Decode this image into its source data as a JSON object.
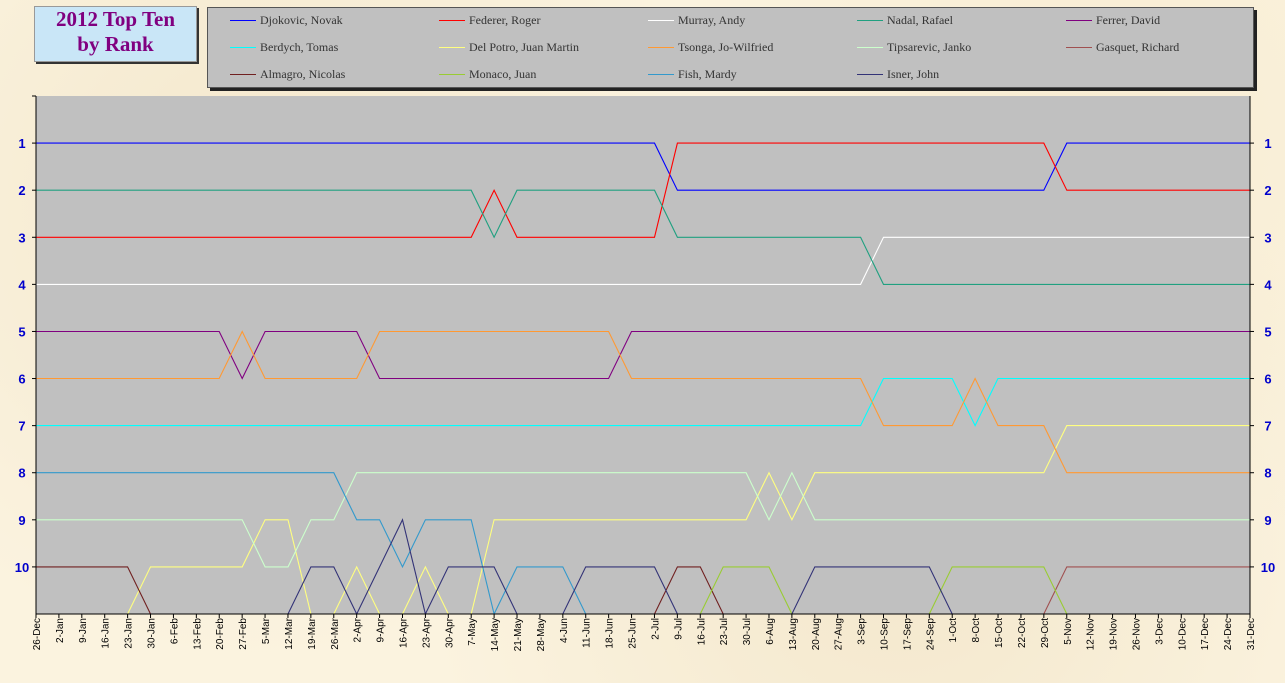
{
  "title": {
    "line1": "2012 Top Ten",
    "line2": "by Rank"
  },
  "chart_data": {
    "type": "line",
    "title": "2012 Top Ten by Rank",
    "xlabel": "",
    "ylabel": "",
    "ylim": [
      11,
      0
    ],
    "y_ticks": [
      1,
      2,
      3,
      4,
      5,
      6,
      7,
      8,
      9,
      10
    ],
    "grid": false,
    "legend_position": "top",
    "categories": [
      "26-Dec",
      "2-Jan",
      "9-Jan",
      "16-Jan",
      "23-Jan",
      "30-Jan",
      "6-Feb",
      "13-Feb",
      "20-Feb",
      "27-Feb",
      "5-Mar",
      "12-Mar",
      "19-Mar",
      "26-Mar",
      "2-Apr",
      "9-Apr",
      "16-Apr",
      "23-Apr",
      "30-Apr",
      "7-May",
      "14-May",
      "21-May",
      "28-May",
      "4-Jun",
      "11-Jun",
      "18-Jun",
      "25-Jun",
      "2-Jul",
      "9-Jul",
      "16-Jul",
      "23-Jul",
      "30-Jul",
      "6-Aug",
      "13-Aug",
      "20-Aug",
      "27-Aug",
      "3-Sep",
      "10-Sep",
      "17-Sep",
      "24-Sep",
      "1-Oct",
      "8-Oct",
      "15-Oct",
      "22-Oct",
      "29-Oct",
      "5-Nov",
      "12-Nov",
      "19-Nov",
      "26-Nov",
      "3-Dec",
      "10-Dec",
      "17-Dec",
      "24-Dec",
      "31-Dec"
    ],
    "series": [
      {
        "name": "Djokovic, Novak",
        "color": "#0000ff",
        "values": [
          1,
          1,
          1,
          1,
          1,
          1,
          1,
          1,
          1,
          1,
          1,
          1,
          1,
          1,
          1,
          1,
          1,
          1,
          1,
          1,
          1,
          1,
          1,
          1,
          1,
          1,
          1,
          1,
          2,
          2,
          2,
          2,
          2,
          2,
          2,
          2,
          2,
          2,
          2,
          2,
          2,
          2,
          2,
          2,
          2,
          1,
          1,
          1,
          1,
          1,
          1,
          1,
          1,
          1
        ]
      },
      {
        "name": "Federer, Roger",
        "color": "#ff0000",
        "values": [
          3,
          3,
          3,
          3,
          3,
          3,
          3,
          3,
          3,
          3,
          3,
          3,
          3,
          3,
          3,
          3,
          3,
          3,
          3,
          3,
          2,
          3,
          3,
          3,
          3,
          3,
          3,
          3,
          1,
          1,
          1,
          1,
          1,
          1,
          1,
          1,
          1,
          1,
          1,
          1,
          1,
          1,
          1,
          1,
          1,
          2,
          2,
          2,
          2,
          2,
          2,
          2,
          2,
          2
        ]
      },
      {
        "name": "Murray, Andy",
        "color": "#ffffff",
        "values": [
          4,
          4,
          4,
          4,
          4,
          4,
          4,
          4,
          4,
          4,
          4,
          4,
          4,
          4,
          4,
          4,
          4,
          4,
          4,
          4,
          4,
          4,
          4,
          4,
          4,
          4,
          4,
          4,
          4,
          4,
          4,
          4,
          4,
          4,
          4,
          4,
          4,
          3,
          3,
          3,
          3,
          3,
          3,
          3,
          3,
          3,
          3,
          3,
          3,
          3,
          3,
          3,
          3,
          3
        ]
      },
      {
        "name": "Nadal, Rafael",
        "color": "#20a080",
        "values": [
          2,
          2,
          2,
          2,
          2,
          2,
          2,
          2,
          2,
          2,
          2,
          2,
          2,
          2,
          2,
          2,
          2,
          2,
          2,
          2,
          3,
          2,
          2,
          2,
          2,
          2,
          2,
          2,
          3,
          3,
          3,
          3,
          3,
          3,
          3,
          3,
          3,
          4,
          4,
          4,
          4,
          4,
          4,
          4,
          4,
          4,
          4,
          4,
          4,
          4,
          4,
          4,
          4,
          4
        ]
      },
      {
        "name": "Ferrer, David",
        "color": "#800080",
        "values": [
          5,
          5,
          5,
          5,
          5,
          5,
          5,
          5,
          5,
          6,
          5,
          5,
          5,
          5,
          5,
          6,
          6,
          6,
          6,
          6,
          6,
          6,
          6,
          6,
          6,
          6,
          5,
          5,
          5,
          5,
          5,
          5,
          5,
          5,
          5,
          5,
          5,
          5,
          5,
          5,
          5,
          5,
          5,
          5,
          5,
          5,
          5,
          5,
          5,
          5,
          5,
          5,
          5,
          5
        ]
      },
      {
        "name": "Berdych, Tomas",
        "color": "#00ffff",
        "values": [
          7,
          7,
          7,
          7,
          7,
          7,
          7,
          7,
          7,
          7,
          7,
          7,
          7,
          7,
          7,
          7,
          7,
          7,
          7,
          7,
          7,
          7,
          7,
          7,
          7,
          7,
          7,
          7,
          7,
          7,
          7,
          7,
          7,
          7,
          7,
          7,
          7,
          6,
          6,
          6,
          6,
          7,
          6,
          6,
          6,
          6,
          6,
          6,
          6,
          6,
          6,
          6,
          6,
          6
        ]
      },
      {
        "name": "Del Potro, Juan Martin",
        "color": "#ffff80",
        "values": [
          11,
          11,
          11,
          11,
          11,
          10,
          10,
          10,
          10,
          10,
          9,
          9,
          11,
          11,
          10,
          11,
          11,
          10,
          11,
          11,
          9,
          9,
          9,
          9,
          9,
          9,
          9,
          9,
          9,
          9,
          9,
          9,
          8,
          9,
          8,
          8,
          8,
          8,
          8,
          8,
          8,
          8,
          8,
          8,
          8,
          7,
          7,
          7,
          7,
          7,
          7,
          7,
          7,
          7
        ]
      },
      {
        "name": "Tsonga, Jo-Wilfried",
        "color": "#ff9933",
        "values": [
          6,
          6,
          6,
          6,
          6,
          6,
          6,
          6,
          6,
          5,
          6,
          6,
          6,
          6,
          6,
          5,
          5,
          5,
          5,
          5,
          5,
          5,
          5,
          5,
          5,
          5,
          6,
          6,
          6,
          6,
          6,
          6,
          6,
          6,
          6,
          6,
          6,
          7,
          7,
          7,
          7,
          6,
          7,
          7,
          7,
          8,
          8,
          8,
          8,
          8,
          8,
          8,
          8,
          8
        ]
      },
      {
        "name": "Tipsarevic, Janko",
        "color": "#ccffcc",
        "values": [
          9,
          9,
          9,
          9,
          9,
          9,
          9,
          9,
          9,
          9,
          10,
          10,
          9,
          9,
          8,
          8,
          8,
          8,
          8,
          8,
          8,
          8,
          8,
          8,
          8,
          8,
          8,
          8,
          8,
          8,
          8,
          8,
          9,
          8,
          9,
          9,
          9,
          9,
          9,
          9,
          9,
          9,
          9,
          9,
          9,
          9,
          9,
          9,
          9,
          9,
          9,
          9,
          9,
          9
        ]
      },
      {
        "name": "Gasquet, Richard",
        "color": "#a05050",
        "values": [
          11,
          11,
          11,
          11,
          11,
          11,
          11,
          11,
          11,
          11,
          11,
          11,
          11,
          11,
          11,
          11,
          11,
          11,
          11,
          11,
          11,
          11,
          11,
          11,
          11,
          11,
          11,
          11,
          11,
          11,
          11,
          11,
          11,
          11,
          11,
          11,
          11,
          11,
          11,
          11,
          11,
          11,
          11,
          11,
          11,
          10,
          10,
          10,
          10,
          10,
          10,
          10,
          10,
          10
        ]
      },
      {
        "name": "Almagro, Nicolas",
        "color": "#702020",
        "values": [
          10,
          10,
          10,
          10,
          10,
          11,
          11,
          11,
          11,
          11,
          11,
          11,
          11,
          11,
          11,
          11,
          11,
          11,
          11,
          11,
          11,
          11,
          11,
          11,
          11,
          11,
          11,
          11,
          10,
          10,
          11,
          11,
          11,
          11,
          11,
          11,
          11,
          11,
          11,
          11,
          11,
          11,
          11,
          11,
          11,
          11,
          11,
          11,
          11,
          11,
          11,
          11,
          11,
          11
        ]
      },
      {
        "name": "Monaco, Juan",
        "color": "#99cc33",
        "values": [
          11,
          11,
          11,
          11,
          11,
          11,
          11,
          11,
          11,
          11,
          11,
          11,
          11,
          11,
          11,
          11,
          11,
          11,
          11,
          11,
          11,
          11,
          11,
          11,
          11,
          11,
          11,
          11,
          11,
          11,
          10,
          10,
          10,
          11,
          11,
          11,
          11,
          11,
          11,
          11,
          10,
          10,
          10,
          10,
          10,
          11,
          11,
          11,
          11,
          11,
          11,
          11,
          11,
          11
        ]
      },
      {
        "name": "Fish, Mardy",
        "color": "#3399cc",
        "values": [
          8,
          8,
          8,
          8,
          8,
          8,
          8,
          8,
          8,
          8,
          8,
          8,
          8,
          8,
          9,
          9,
          10,
          9,
          9,
          9,
          11,
          10,
          10,
          10,
          11,
          11,
          11,
          11,
          11,
          11,
          11,
          11,
          11,
          11,
          11,
          11,
          11,
          11,
          11,
          11,
          11,
          11,
          11,
          11,
          11,
          11,
          11,
          11,
          11,
          11,
          11,
          11,
          11,
          11
        ]
      },
      {
        "name": "Isner, John",
        "color": "#333377",
        "values": [
          11,
          11,
          11,
          11,
          11,
          11,
          11,
          11,
          11,
          11,
          11,
          11,
          10,
          10,
          11,
          10,
          9,
          11,
          10,
          10,
          10,
          11,
          11,
          11,
          10,
          10,
          10,
          10,
          11,
          11,
          11,
          11,
          11,
          11,
          10,
          10,
          10,
          10,
          10,
          10,
          11,
          11,
          11,
          11,
          11,
          11,
          11,
          11,
          11,
          11,
          11,
          11,
          11,
          11
        ]
      }
    ]
  }
}
